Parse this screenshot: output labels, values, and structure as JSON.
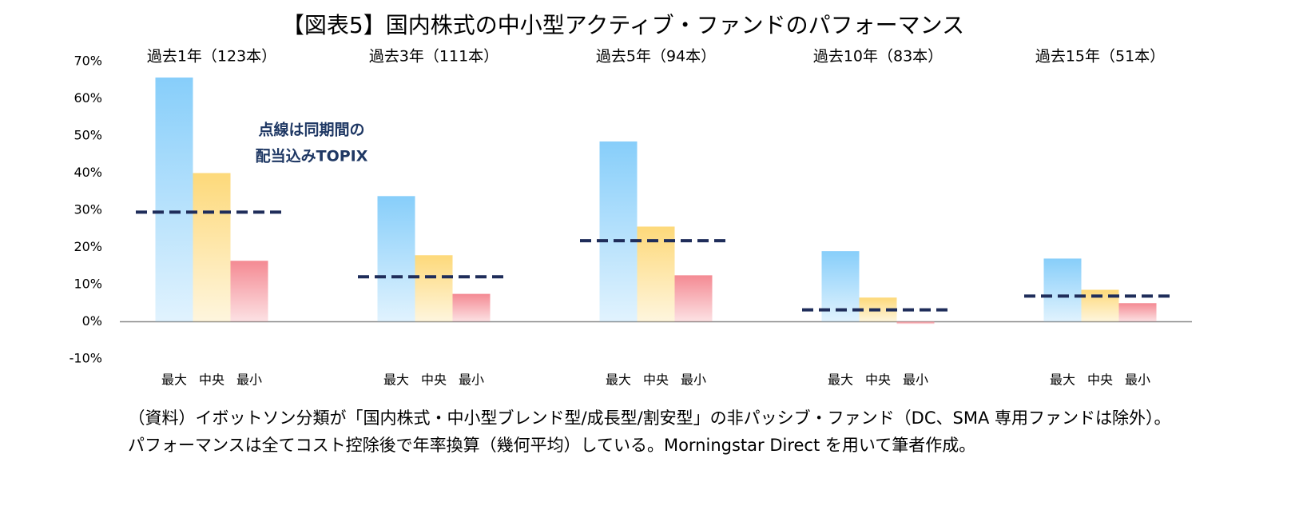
{
  "chart_data": {
    "type": "bar",
    "title": "【図表5】国内株式の中小型アクティブ・ファンドのパフォーマンス",
    "categories": [
      "過去1年（123本）",
      "過去3年（111本）",
      "過去5年（94本）",
      "過去10年（83本）",
      "過去15年（51本）"
    ],
    "series": [
      {
        "name": "最大",
        "color": "#87cefa",
        "values": [
          65.7,
          33.8,
          48.5,
          19.0,
          17.0
        ]
      },
      {
        "name": "中央",
        "color": "#fdd97a",
        "values": [
          40.0,
          17.9,
          25.6,
          6.5,
          8.6
        ]
      },
      {
        "name": "最小",
        "color": "#f48a93",
        "values": [
          16.4,
          7.5,
          12.5,
          -0.6,
          5.0
        ]
      }
    ],
    "reference_line": {
      "color": "#1f2d5a",
      "style": "dashed",
      "values": [
        29.5,
        12.1,
        21.8,
        3.2,
        6.9
      ]
    },
    "annotation": [
      "点線は同期間の",
      "配当込みTOPIX"
    ],
    "ylim": [
      -10,
      70
    ],
    "yticks": [
      {
        "value": -10,
        "label": "-10%"
      },
      {
        "value": 0,
        "label": "0%"
      },
      {
        "value": 10,
        "label": "10%"
      },
      {
        "value": 20,
        "label": "20%"
      },
      {
        "value": 30,
        "label": "30%"
      },
      {
        "value": 40,
        "label": "40%"
      },
      {
        "value": 50,
        "label": "50%"
      },
      {
        "value": 60,
        "label": "60%"
      },
      {
        "value": 70,
        "label": "70%"
      }
    ],
    "grid": false,
    "notes": [
      "（資料）イボットソン分類が「国内株式・中小型ブレンド型/成長型/割安型」の非パッシブ・ファンド（DC、SMA 専用ファンドは除外）。",
      "パフォーマンスは全てコスト控除後で年率換算（幾何平均）している。Morningstar Direct を用いて筆者作成。"
    ]
  }
}
